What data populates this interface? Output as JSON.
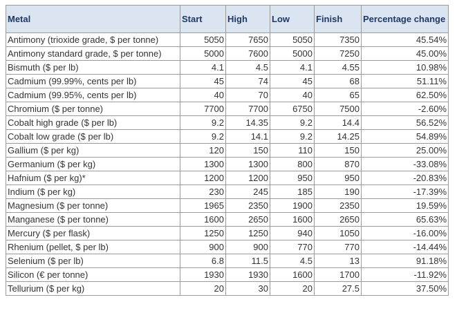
{
  "table": {
    "header": [
      "Metal",
      "Start",
      "High",
      "Low",
      "Finish",
      "Percentage change"
    ],
    "rows": [
      [
        "Antimony (trioxide grade, $ per tonne)",
        "5050",
        "7650",
        "5050",
        "7350",
        "45.54%"
      ],
      [
        "Antimony standard grade, $ per tonne)",
        "5000",
        "7600",
        "5000",
        "7250",
        "45.00%"
      ],
      [
        "Bismuth ($ per lb)",
        "4.1",
        "4.5",
        "4.1",
        "4.55",
        "10.98%"
      ],
      [
        "Cadmium (99.99%, cents per lb)",
        "45",
        "74",
        "45",
        "68",
        "51.11%"
      ],
      [
        "Cadmium (99.95%, cents per lb)",
        "40",
        "70",
        "40",
        "65",
        "62.50%"
      ],
      [
        "Chromium ($ per tonne)",
        "7700",
        "7700",
        "6750",
        "7500",
        "-2.60%"
      ],
      [
        "Cobalt high grade ($ per lb)",
        "9.2",
        "14.35",
        "9.2",
        "14.4",
        "56.52%"
      ],
      [
        "Cobalt low grade ($ per lb)",
        "9.2",
        "14.1",
        "9.2",
        "14.25",
        "54.89%"
      ],
      [
        "Gallium ($ per kg)",
        "120",
        "150",
        "110",
        "150",
        "25.00%"
      ],
      [
        "Germanium ($ per kg)",
        "1300",
        "1300",
        "800",
        "870",
        "-33.08%"
      ],
      [
        "Hafnium ($ per kg)*",
        "1200",
        "1200",
        "950",
        "950",
        "-20.83%"
      ],
      [
        "Indium ($ per kg)",
        "230",
        "245",
        "185",
        "190",
        "-17.39%"
      ],
      [
        "Magnesium ($ per tonne)",
        "1965",
        "2350",
        "1900",
        "2350",
        "19.59%"
      ],
      [
        "Manganese ($ per tonne)",
        "1600",
        "2650",
        "1600",
        "2650",
        "65.63%"
      ],
      [
        "Mercury ($ per flask)",
        "1250",
        "1250",
        "940",
        "1050",
        "-16.00%"
      ],
      [
        "Rhenium (pellet, $ per lb)",
        "900",
        "900",
        "770",
        "770",
        "-14.44%"
      ],
      [
        "Selenium ($ per lb)",
        "6.8",
        "11.5",
        "4.5",
        "13",
        "91.18%"
      ],
      [
        "Silicon (€ per tonne)",
        "1930",
        "1930",
        "1600",
        "1700",
        "-11.92%"
      ],
      [
        "Tellurium ($ per kg)",
        "20",
        "30",
        "20",
        "27.5",
        "37.50%"
      ]
    ]
  }
}
